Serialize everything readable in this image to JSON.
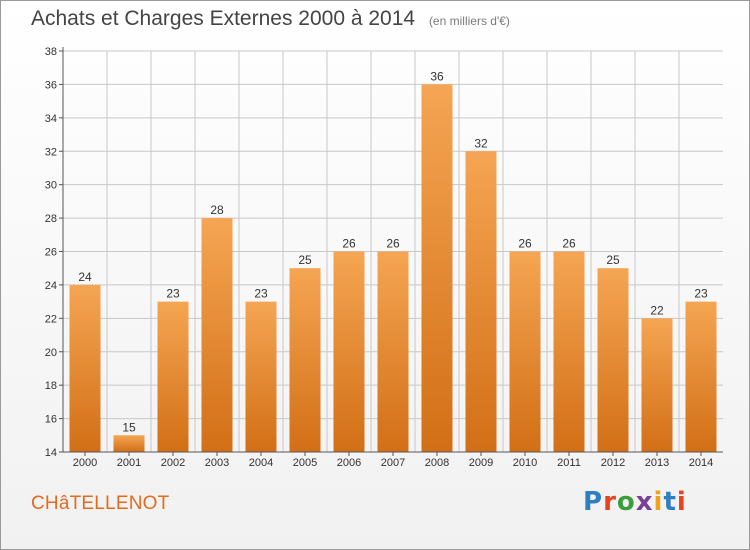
{
  "header": {
    "title": "Achats et Charges Externes 2000 à 2014",
    "unit": "(en milliers d'€)"
  },
  "footer": {
    "place": "CHâTELLENOT",
    "logo": "Proxiti",
    "logo_colors": [
      "#2d7fc1",
      "#e8431f",
      "#3a9d3a",
      "#7b3f98",
      "#f0a21b",
      "#2d7fc1",
      "#e8431f"
    ]
  },
  "colors": {
    "bar_top": "#f5a553",
    "bar_bottom": "#d26f16",
    "grid": "#c8c8c8",
    "axis": "#555555"
  },
  "chart_data": {
    "type": "bar",
    "title": "Achats et Charges Externes 2000 à 2014",
    "categories": [
      "2000",
      "2001",
      "2002",
      "2003",
      "2004",
      "2005",
      "2006",
      "2007",
      "2008",
      "2009",
      "2010",
      "2011",
      "2012",
      "2013",
      "2014"
    ],
    "values": [
      24,
      15,
      23,
      28,
      23,
      25,
      26,
      26,
      36,
      32,
      26,
      26,
      25,
      22,
      23
    ],
    "ylim": [
      14,
      38
    ],
    "yticks": [
      14,
      16,
      18,
      20,
      22,
      24,
      26,
      28,
      30,
      32,
      34,
      36,
      38
    ],
    "grid": true
  }
}
